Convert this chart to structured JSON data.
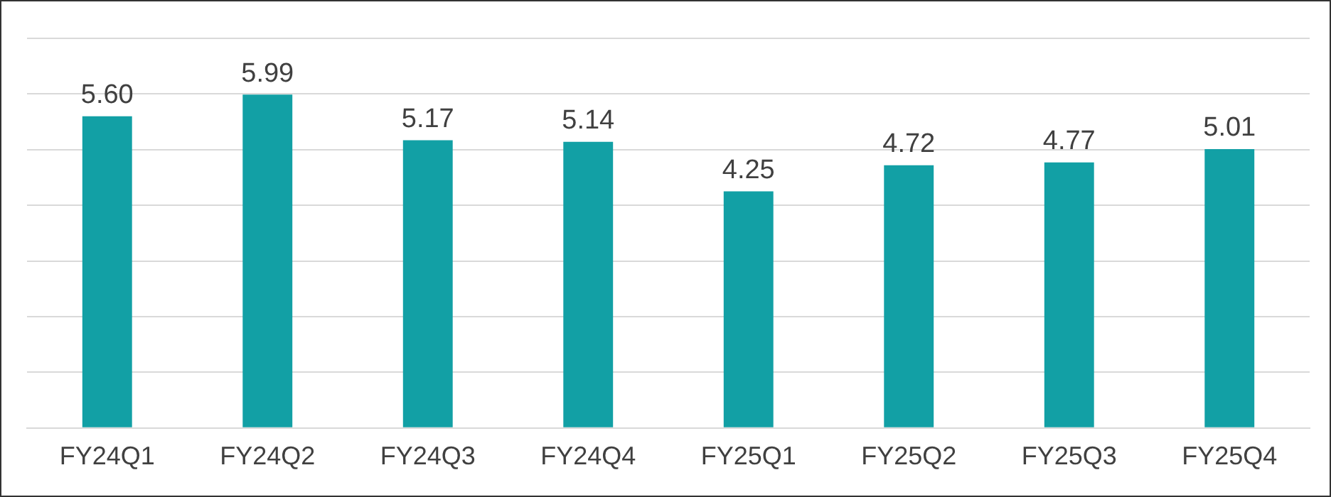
{
  "chart_data": {
    "type": "bar",
    "categories": [
      "FY24Q1",
      "FY24Q2",
      "FY24Q3",
      "FY24Q4",
      "FY25Q1",
      "FY25Q2",
      "FY25Q3",
      "FY25Q4"
    ],
    "values": [
      5.6,
      5.99,
      5.17,
      5.14,
      4.25,
      4.72,
      4.77,
      5.01
    ],
    "value_labels": [
      "5.60",
      "5.99",
      "5.17",
      "5.14",
      "4.25",
      "4.72",
      "4.77",
      "5.01"
    ],
    "color": "#12a0a5",
    "ylim": [
      0,
      7
    ],
    "yticks": [
      {
        "value": 0,
        "label": null
      },
      {
        "value": 1,
        "label": null
      },
      {
        "value": 2,
        "label": null
      },
      {
        "value": 3,
        "label": null
      },
      {
        "value": 4,
        "label": null
      },
      {
        "value": 5,
        "label": null
      },
      {
        "value": 6,
        "label": null
      },
      {
        "value": 7,
        "label": null
      }
    ],
    "tick_labels": "x",
    "grid": "y",
    "legend": false
  }
}
